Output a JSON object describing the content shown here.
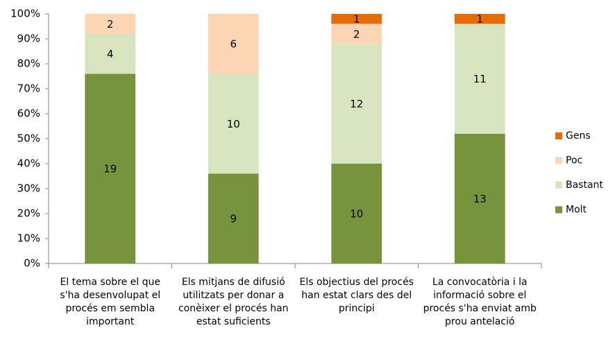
{
  "chart_data": {
    "type": "stacked_bar",
    "stacking": "percent",
    "categories": [
      "El tema sobre el que s'ha desenvolupat el procés em sembla important",
      "Els mitjans de difusió utilitzats per donar a conèixer el procés han estat suficients",
      "Els objectius del procés han estat clars des del principi",
      "La convocatòria i la informació sobre el procés s'ha enviat amb prou antelació"
    ],
    "series": [
      {
        "name": "Molt",
        "color": "#77933c",
        "values": [
          19,
          9,
          10,
          13
        ]
      },
      {
        "name": "Bastant",
        "color": "#d7e4bd",
        "values": [
          4,
          10,
          12,
          11
        ]
      },
      {
        "name": "Poc",
        "color": "#fcd5b5",
        "values": [
          2,
          6,
          2,
          null
        ]
      },
      {
        "name": "Gens",
        "color": "#e46c0a",
        "values": [
          null,
          null,
          1,
          1
        ]
      }
    ],
    "ylim": [
      0,
      100
    ],
    "yticks": [
      {
        "value": 0,
        "label": "0%"
      },
      {
        "value": 10,
        "label": "10%"
      },
      {
        "value": 20,
        "label": "20%"
      },
      {
        "value": 30,
        "label": "30%"
      },
      {
        "value": 40,
        "label": "40%"
      },
      {
        "value": 50,
        "label": "50%"
      },
      {
        "value": 60,
        "label": "60%"
      },
      {
        "value": 70,
        "label": "70%"
      },
      {
        "value": 80,
        "label": "80%"
      },
      {
        "value": 90,
        "label": "90%"
      },
      {
        "value": 100,
        "label": "100%"
      }
    ],
    "legend": "right"
  }
}
